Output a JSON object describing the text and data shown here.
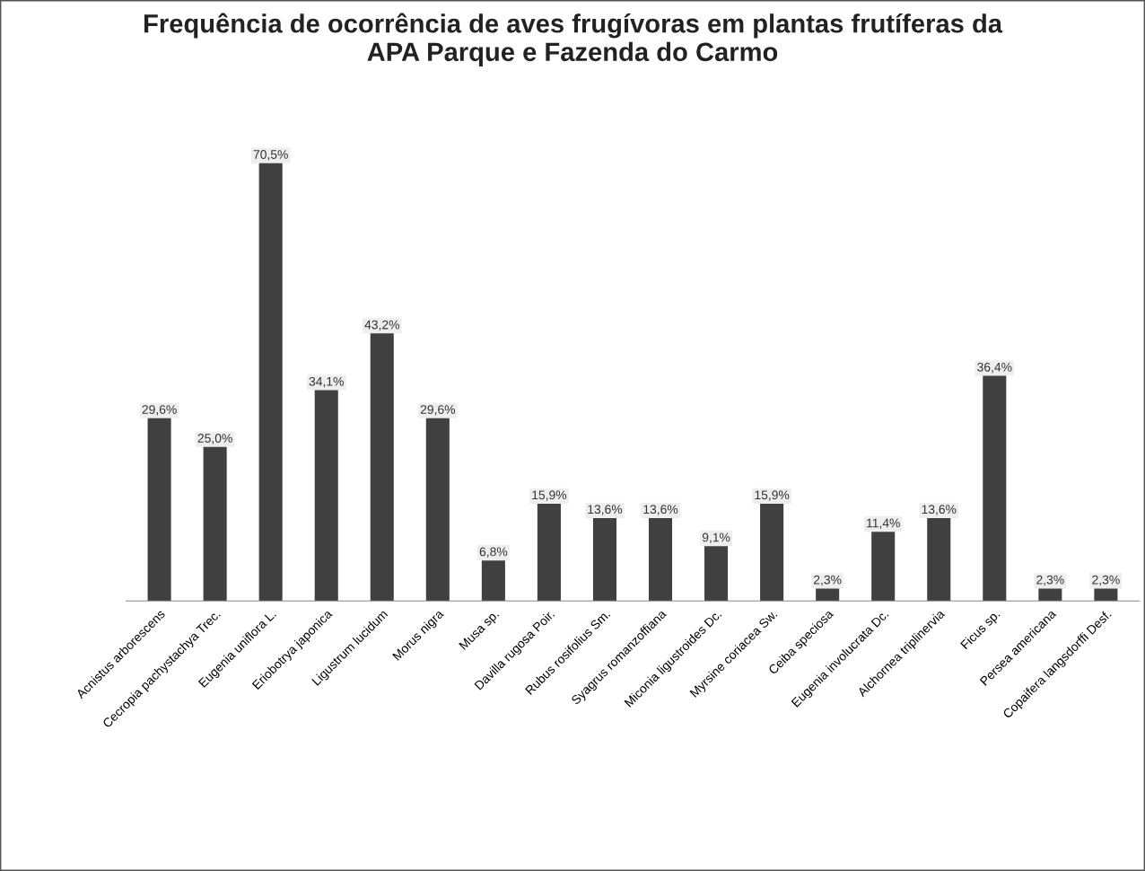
{
  "chart_data": {
    "type": "bar",
    "title": "Frequência de ocorrência de aves frugívoras em plantas frutíferas da\nAPA Parque e Fazenda do Carmo",
    "categories": [
      "Acnistus arborescens",
      "Cecropia pachystachya Trec.",
      "Eugenia uniflora L.",
      "Eriobotrya japonica",
      "Ligustrum lucidum",
      "Morus nigra",
      "Musa sp.",
      "Davilla rugosa Poir.",
      "Rubus rosifolius Sm.",
      "Syagrus romanzoffiana",
      "Miconia ligustroides Dc.",
      "Myrsine coriacea Sw.",
      "Ceiba speciosa",
      "Eugenia involucrata Dc.",
      "Alchornea triplinervia",
      "Ficus sp.",
      "Persea americana",
      "Copaifera langsdorffi Desf."
    ],
    "values": [
      29.6,
      25.0,
      70.5,
      34.1,
      43.2,
      29.6,
      6.8,
      15.9,
      13.6,
      13.6,
      9.1,
      15.9,
      2.3,
      11.4,
      13.6,
      36.4,
      2.3,
      2.3
    ],
    "value_labels": [
      "29,6%",
      "25,0%",
      "70,5%",
      "34,1%",
      "43,2%",
      "29,6%",
      "6,8%",
      "15,9%",
      "13,6%",
      "13,6%",
      "9,1%",
      "15,9%",
      "2,3%",
      "11,4%",
      "13,6%",
      "36,4%",
      "2,3%",
      "2,3%"
    ],
    "color": "#404040",
    "grid": false,
    "legend": false
  }
}
